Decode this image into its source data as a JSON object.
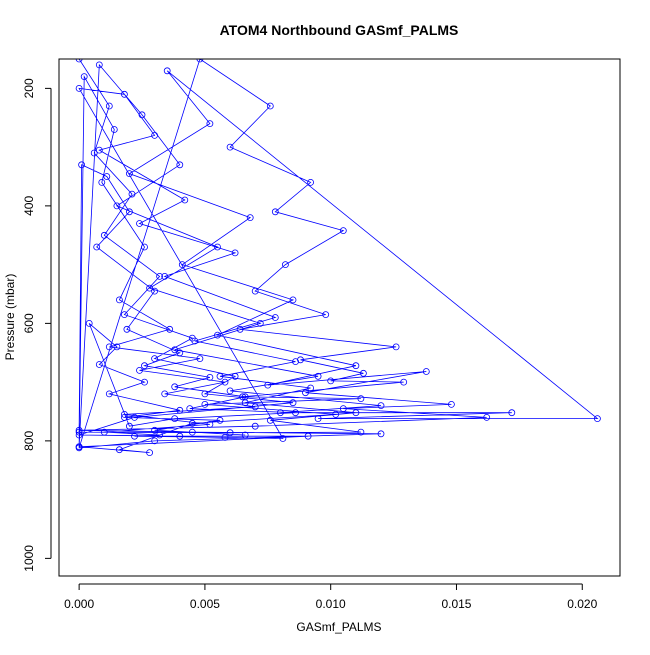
{
  "chart_data": {
    "type": "scatter",
    "title": "ATOM4 Northbound GASmf_PALMS",
    "xlabel": "GASmf_PALMS",
    "ylabel": "Pressure (mbar)",
    "xlim": [
      -0.0008,
      0.0215
    ],
    "ylim": [
      1030,
      150
    ],
    "y_axis_inverted": true,
    "x_ticks": [
      "0.000",
      "0.005",
      "0.010",
      "0.015",
      "0.020"
    ],
    "y_ticks": [
      "200",
      "400",
      "600",
      "800",
      "1000"
    ],
    "grid": false,
    "legend": "none",
    "colors": {
      "series": "#0000ff",
      "axis": "#000000"
    },
    "series": [
      {
        "style": "lines+open-circles",
        "points": [
          [
            0.0,
            150
          ],
          [
            0.0012,
            230
          ],
          [
            0.0006,
            310
          ],
          [
            0.0021,
            380
          ],
          [
            0.001,
            450
          ],
          [
            0.0032,
            520
          ],
          [
            0.0018,
            585
          ],
          [
            0.0045,
            625
          ],
          [
            0.003,
            660
          ],
          [
            0.0062,
            690
          ],
          [
            0.005,
            720
          ],
          [
            0.0085,
            735
          ],
          [
            0.0022,
            760
          ],
          [
            0.0,
            790
          ],
          [
            0.004,
            792
          ],
          [
            0.0091,
            792
          ],
          [
            0.0,
            810
          ],
          [
            0.0008,
            160
          ],
          [
            0.0025,
            245
          ],
          [
            0.004,
            330
          ],
          [
            0.0015,
            400
          ],
          [
            0.0055,
            470
          ],
          [
            0.0028,
            540
          ],
          [
            0.0072,
            600
          ],
          [
            0.0038,
            645
          ],
          [
            0.0095,
            690
          ],
          [
            0.006,
            715
          ],
          [
            0.012,
            740
          ],
          [
            0.008,
            752
          ],
          [
            0.0172,
            752
          ],
          [
            0.0095,
            762
          ],
          [
            0.0206,
            762
          ],
          [
            0.0035,
            170
          ],
          [
            0.0052,
            260
          ],
          [
            0.002,
            345
          ],
          [
            0.0068,
            420
          ],
          [
            0.0041,
            500
          ],
          [
            0.0085,
            560
          ],
          [
            0.0055,
            620
          ],
          [
            0.011,
            672
          ],
          [
            0.0075,
            705
          ],
          [
            0.0138,
            682
          ],
          [
            0.009,
            718
          ],
          [
            0.0148,
            738
          ],
          [
            0.0105,
            745
          ],
          [
            0.0162,
            760
          ],
          [
            0.007,
            775
          ],
          [
            0.0,
            782
          ],
          [
            0.0045,
            785
          ],
          [
            0.012,
            788
          ],
          [
            0.003,
            800
          ],
          [
            0.0,
            812
          ],
          [
            0.0048,
            150
          ],
          [
            0.0076,
            230
          ],
          [
            0.006,
            300
          ],
          [
            0.0092,
            360
          ],
          [
            0.0078,
            410
          ],
          [
            0.0105,
            442
          ],
          [
            0.0082,
            500
          ],
          [
            0.007,
            545
          ],
          [
            0.0098,
            585
          ],
          [
            0.0064,
            610
          ],
          [
            0.0126,
            640
          ],
          [
            0.0088,
            662
          ],
          [
            0.0113,
            685
          ],
          [
            0.01,
            698
          ],
          [
            0.0129,
            700
          ],
          [
            0.0065,
            725
          ],
          [
            0.0112,
            728
          ],
          [
            0.005,
            738
          ],
          [
            0.0102,
            755
          ],
          [
            0.0045,
            770
          ],
          [
            0.0016,
            815
          ],
          [
            0.0028,
            820
          ],
          [
            0.0,
            810
          ],
          [
            0.0002,
            180
          ],
          [
            0.0014,
            270
          ],
          [
            0.0009,
            360
          ],
          [
            0.0026,
            470
          ],
          [
            0.0016,
            560
          ],
          [
            0.0036,
            610
          ],
          [
            0.0012,
            640
          ],
          [
            0.0048,
            660
          ],
          [
            0.0024,
            680
          ],
          [
            0.0058,
            700
          ],
          [
            0.0034,
            720
          ],
          [
            0.007,
            742
          ],
          [
            0.0018,
            755
          ],
          [
            0.0052,
            772
          ],
          [
            0.001,
            785
          ],
          [
            0.0032,
            790
          ],
          [
            0.0022,
            792
          ],
          [
            0.0058,
            794
          ],
          [
            0.0081,
            796
          ],
          [
            0.0,
            200
          ],
          [
            0.0018,
            210
          ],
          [
            0.003,
            280
          ],
          [
            0.0008,
            305
          ],
          [
            0.0042,
            390
          ],
          [
            0.0024,
            430
          ],
          [
            0.0062,
            480
          ],
          [
            0.0034,
            520
          ],
          [
            0.0078,
            590
          ],
          [
            0.0046,
            630
          ],
          [
            0.0086,
            665
          ],
          [
            0.0056,
            690
          ],
          [
            0.0092,
            710
          ],
          [
            0.0066,
            735
          ],
          [
            0.011,
            752
          ],
          [
            0.0076,
            765
          ],
          [
            0.0112,
            785
          ],
          [
            0.006,
            786
          ],
          [
            0.0,
            785
          ],
          [
            0.0001,
            330
          ],
          [
            0.0011,
            350
          ],
          [
            0.002,
            410
          ],
          [
            0.0007,
            470
          ],
          [
            0.003,
            545
          ],
          [
            0.0019,
            610
          ],
          [
            0.004,
            650
          ],
          [
            0.0026,
            672
          ],
          [
            0.0052,
            692
          ],
          [
            0.0038,
            708
          ],
          [
            0.0066,
            725
          ],
          [
            0.0044,
            745
          ],
          [
            0.0086,
            752
          ],
          [
            0.0038,
            762
          ],
          [
            0.002,
            775
          ],
          [
            0.0004,
            600
          ],
          [
            0.0015,
            640
          ],
          [
            0.0008,
            670
          ],
          [
            0.0026,
            700
          ],
          [
            0.0012,
            720
          ],
          [
            0.004,
            748
          ],
          [
            0.0018,
            760
          ],
          [
            0.0056,
            765
          ],
          [
            0.003,
            782
          ],
          [
            0.0066,
            790
          ]
        ]
      }
    ]
  }
}
